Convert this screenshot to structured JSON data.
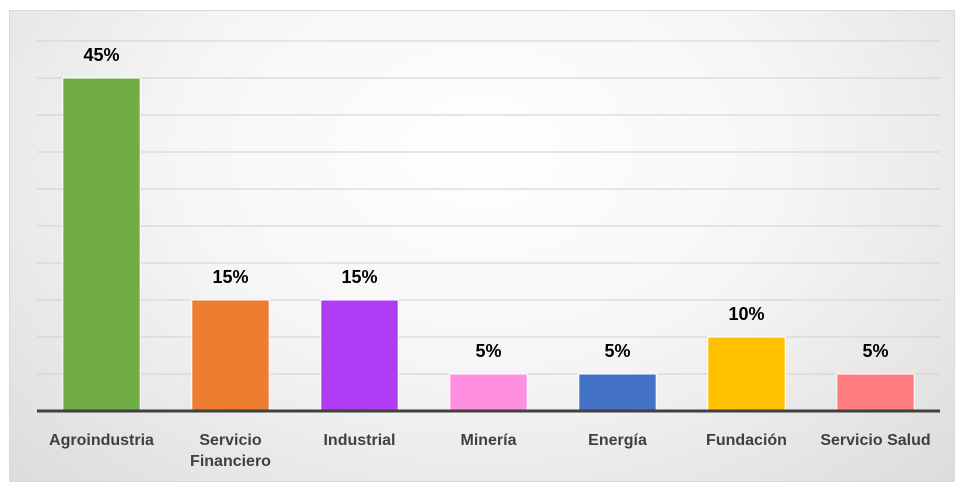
{
  "header": {
    "partial_title": "·····"
  },
  "chart_data": {
    "type": "bar",
    "title": "",
    "xlabel": "",
    "ylabel": "",
    "categories": [
      "Agroindustria",
      "Servicio Financiero",
      "Industrial",
      "Minería",
      "Energía",
      "Fundación",
      "Servicio Salud"
    ],
    "category_lines": [
      [
        "Agroindustria"
      ],
      [
        "Servicio",
        "Financiero"
      ],
      [
        "Industrial"
      ],
      [
        "Minería"
      ],
      [
        "Energía"
      ],
      [
        "Fundación"
      ],
      [
        "Servicio Salud"
      ]
    ],
    "values": [
      45,
      15,
      15,
      5,
      5,
      10,
      5
    ],
    "data_labels": [
      "45%",
      "15%",
      "15%",
      "5%",
      "5%",
      "10%",
      "5%"
    ],
    "unit": "%",
    "ylim": [
      0,
      50
    ],
    "grid": true,
    "legend": "none",
    "colors": [
      "#70ad47",
      "#ed7d31",
      "#b03cf5",
      "#ff8fe0",
      "#4472c4",
      "#ffc000",
      "#ff7c80"
    ]
  }
}
